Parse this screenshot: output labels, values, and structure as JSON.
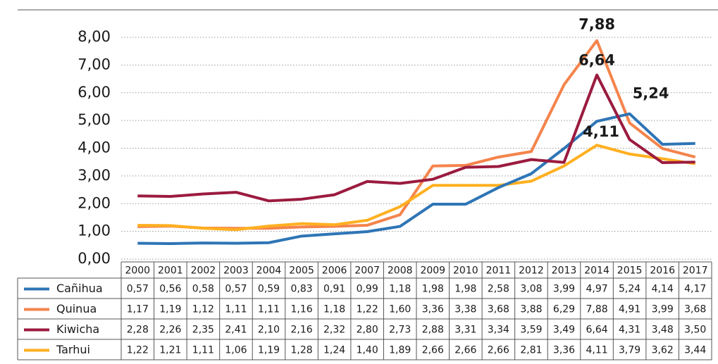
{
  "chart_data": {
    "type": "line",
    "categories": [
      "2000",
      "2001",
      "2002",
      "2003",
      "2004",
      "2005",
      "2006",
      "2007",
      "2008",
      "2009",
      "2010",
      "2011",
      "2012",
      "2013",
      "2014",
      "2015",
      "2016",
      "2017"
    ],
    "series": [
      {
        "name": "Cañihua",
        "color": "#2e75b6",
        "values": [
          0.57,
          0.56,
          0.58,
          0.57,
          0.59,
          0.83,
          0.91,
          0.99,
          1.18,
          1.98,
          1.98,
          2.58,
          3.08,
          3.99,
          4.97,
          5.24,
          4.14,
          4.17
        ],
        "value_labels": [
          "0,57",
          "0,56",
          "0,58",
          "0,57",
          "0,59",
          "0,83",
          "0,91",
          "0,99",
          "1,18",
          "1,98",
          "1,98",
          "2,58",
          "3,08",
          "3,99",
          "4,97",
          "5,24",
          "4,14",
          "4,17"
        ]
      },
      {
        "name": "Quinua",
        "color": "#f4844c",
        "values": [
          1.17,
          1.19,
          1.12,
          1.11,
          1.11,
          1.16,
          1.18,
          1.22,
          1.6,
          3.36,
          3.38,
          3.68,
          3.88,
          6.29,
          7.88,
          4.91,
          3.99,
          3.68
        ],
        "value_labels": [
          "1,17",
          "1,19",
          "1,12",
          "1,11",
          "1,11",
          "1,16",
          "1,18",
          "1,22",
          "1,60",
          "3,36",
          "3,38",
          "3,68",
          "3,88",
          "6,29",
          "7,88",
          "4,91",
          "3,99",
          "3,68"
        ]
      },
      {
        "name": "Kiwicha",
        "color": "#9b1b3f",
        "values": [
          2.28,
          2.26,
          2.35,
          2.41,
          2.1,
          2.16,
          2.32,
          2.8,
          2.73,
          2.88,
          3.31,
          3.34,
          3.59,
          3.49,
          6.64,
          4.31,
          3.48,
          3.5
        ],
        "value_labels": [
          "2,28",
          "2,26",
          "2,35",
          "2,41",
          "2,10",
          "2,16",
          "2,32",
          "2,80",
          "2,73",
          "2,88",
          "3,31",
          "3,34",
          "3,59",
          "3,49",
          "6,64",
          "4,31",
          "3,48",
          "3,50"
        ]
      },
      {
        "name": "Tarhui",
        "color": "#ffb020",
        "values": [
          1.22,
          1.21,
          1.11,
          1.06,
          1.19,
          1.28,
          1.24,
          1.4,
          1.89,
          2.66,
          2.66,
          2.66,
          2.81,
          3.36,
          4.11,
          3.79,
          3.62,
          3.44
        ],
        "value_labels": [
          "1,22",
          "1,21",
          "1,11",
          "1,06",
          "1,19",
          "1,28",
          "1,24",
          "1,40",
          "1,89",
          "2,66",
          "2,66",
          "2,66",
          "2,81",
          "3,36",
          "4,11",
          "3,79",
          "3,62",
          "3,44"
        ]
      }
    ],
    "annotations": [
      "7,88",
      "6,64",
      "5,24",
      "4,11"
    ],
    "ylim": [
      0,
      8
    ],
    "yticks": [
      {
        "value": 0,
        "label": "0,00"
      },
      {
        "value": 1,
        "label": "1,00"
      },
      {
        "value": 2,
        "label": "2,00"
      },
      {
        "value": 3,
        "label": "3,00"
      },
      {
        "value": 4,
        "label": "4,00"
      },
      {
        "value": 5,
        "label": "5,00"
      },
      {
        "value": 6,
        "label": "6,00"
      },
      {
        "value": 7,
        "label": "7,00"
      },
      {
        "value": 8,
        "label": "8,00"
      }
    ],
    "grid": true
  }
}
